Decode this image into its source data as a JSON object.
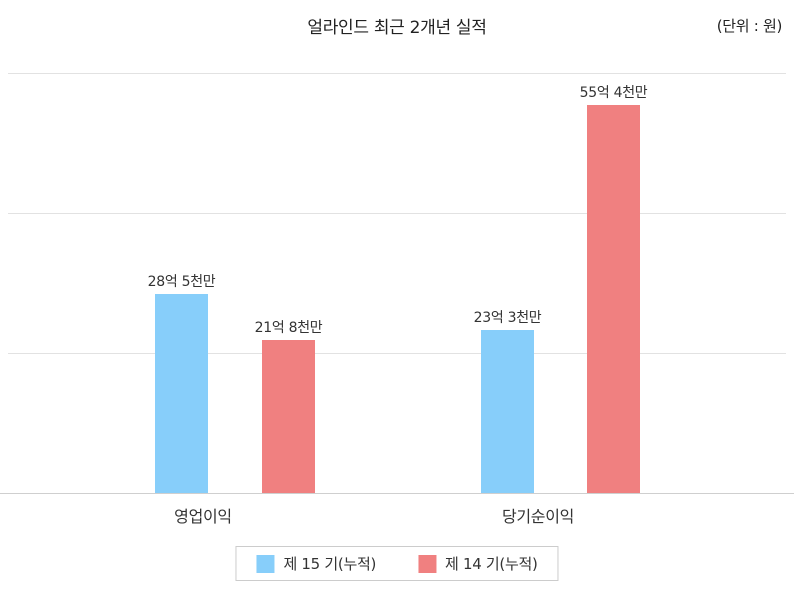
{
  "chart_data": {
    "type": "bar",
    "title": "얼라인드 최근 2개년 실적",
    "unit_label": "(단위 : 원)",
    "categories": [
      "영업이익",
      "당기순이익"
    ],
    "series": [
      {
        "name": "제 15 기(누적)",
        "color": "#87CEFA",
        "values": [
          28.5,
          23.3
        ],
        "value_labels": [
          "28억 5천만",
          "23억 3천만"
        ]
      },
      {
        "name": "제 14 기(누적)",
        "color": "#F08080",
        "values": [
          21.8,
          55.4
        ],
        "value_labels": [
          "21억 8천만",
          "55억 4천만"
        ]
      }
    ],
    "value_unit": "억 원",
    "xlabel": "",
    "ylabel": "",
    "ylim": [
      0,
      64
    ],
    "gridline_values": [
      20,
      40,
      60
    ],
    "grid": true,
    "legend_position": "bottom"
  }
}
